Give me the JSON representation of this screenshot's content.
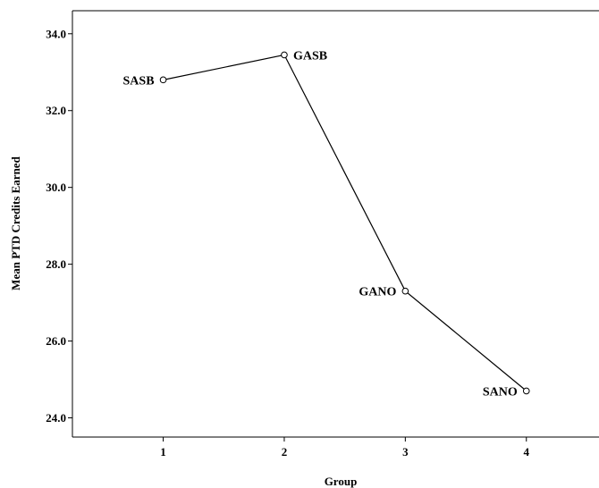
{
  "chart_data": {
    "type": "line",
    "xlabel": "Group",
    "ylabel": "Mean PTD Credits Earned",
    "x_ticks": [
      "1",
      "2",
      "3",
      "4"
    ],
    "y_ticks": [
      "24.0",
      "26.0",
      "28.0",
      "30.0",
      "32.0",
      "34.0"
    ],
    "xlim": [
      0.25,
      4.6
    ],
    "ylim": [
      23.5,
      34.6
    ],
    "grid": false,
    "series": [
      {
        "color": "#000000",
        "points": [
          {
            "x": 1,
            "y": 32.8,
            "label": "SASB"
          },
          {
            "x": 2,
            "y": 33.45,
            "label": "GASB"
          },
          {
            "x": 3,
            "y": 27.3,
            "label": "GANO"
          },
          {
            "x": 4,
            "y": 24.7,
            "label": "SANO"
          }
        ]
      }
    ]
  }
}
